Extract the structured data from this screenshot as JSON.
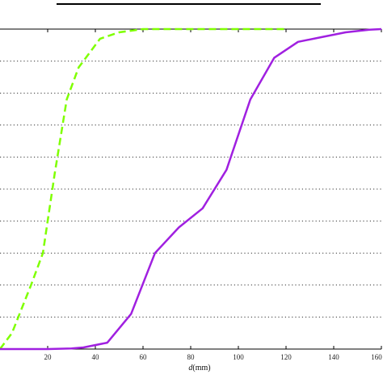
{
  "chart_data": {
    "type": "line",
    "title": "",
    "xlabel_var": "d",
    "xlabel_unit": "(mm)",
    "xlim": [
      0,
      160
    ],
    "ylim": [
      0,
      100
    ],
    "x_ticks": [
      20,
      40,
      60,
      80,
      100,
      120,
      140,
      160
    ],
    "x_tick_labels": [
      "20",
      "40",
      "60",
      "80",
      "100",
      "120",
      "140",
      "160"
    ],
    "y_grid_values": [
      10,
      20,
      30,
      40,
      50,
      60,
      70,
      80,
      90
    ],
    "grid": "horizontal-dotted",
    "series": [
      {
        "color": "#7fff00",
        "style": "dashed",
        "x": [
          0,
          5,
          13,
          18,
          23,
          28,
          33,
          42,
          50,
          60,
          80,
          100,
          120
        ],
        "y": [
          0,
          5,
          20,
          30,
          55,
          78,
          88,
          97,
          99,
          100,
          100,
          100,
          100
        ]
      },
      {
        "color": "#a020e0",
        "style": "solid",
        "x": [
          0,
          20,
          30,
          35,
          45,
          55,
          65,
          75,
          85,
          95,
          105,
          115,
          125,
          135,
          145,
          155,
          160
        ],
        "y": [
          0,
          0,
          0.2,
          0.5,
          2,
          11,
          30,
          38,
          44,
          56,
          78,
          91,
          96,
          97.5,
          99,
          99.8,
          100
        ]
      }
    ]
  }
}
